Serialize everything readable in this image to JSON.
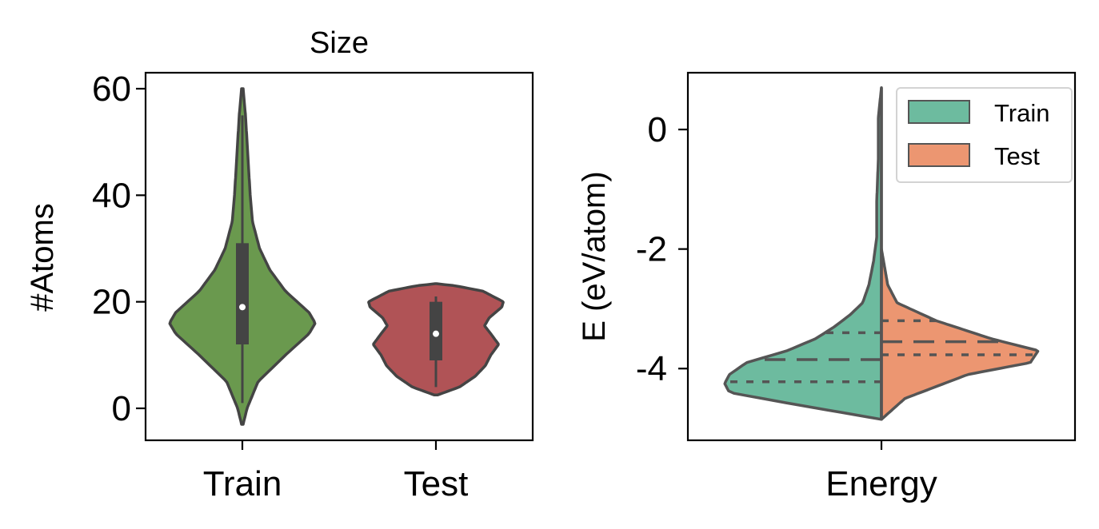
{
  "chart_data": [
    {
      "type": "violin",
      "title": "Size",
      "xlabel": "",
      "ylabel": "#Atoms",
      "ylim": [
        -6,
        63
      ],
      "yticks": [
        0,
        20,
        40,
        60
      ],
      "categories": [
        "Train",
        "Test"
      ],
      "series": [
        {
          "category": "Train",
          "color": "#6a994e",
          "median": 19,
          "q1": 12,
          "q3": 31,
          "whisker_low": 1,
          "whisker_high": 55,
          "density": [
            [
              -3,
              0.01
            ],
            [
              0,
              0.06
            ],
            [
              5,
              0.2
            ],
            [
              10,
              0.55
            ],
            [
              14,
              0.85
            ],
            [
              16,
              0.93
            ],
            [
              18,
              0.85
            ],
            [
              22,
              0.55
            ],
            [
              26,
              0.35
            ],
            [
              30,
              0.22
            ],
            [
              35,
              0.13
            ],
            [
              40,
              0.1
            ],
            [
              45,
              0.08
            ],
            [
              50,
              0.06
            ],
            [
              55,
              0.04
            ],
            [
              60,
              0.01
            ]
          ]
        },
        {
          "category": "Test",
          "color": "#b05356",
          "median": 14,
          "q1": 9,
          "q3": 20,
          "whisker_low": 4,
          "whisker_high": 21,
          "density": [
            [
              2.5,
              0.02
            ],
            [
              4,
              0.3
            ],
            [
              6,
              0.5
            ],
            [
              8,
              0.63
            ],
            [
              10,
              0.7
            ],
            [
              12,
              0.8
            ],
            [
              14,
              0.7
            ],
            [
              15.5,
              0.62
            ],
            [
              17,
              0.68
            ],
            [
              19,
              0.84
            ],
            [
              20,
              0.86
            ],
            [
              22,
              0.6
            ],
            [
              23,
              0.25
            ],
            [
              23.4,
              0.01
            ]
          ]
        }
      ]
    },
    {
      "type": "split-violin",
      "title": "",
      "xlabel": "",
      "ylabel": "E (eV/atom)",
      "ylim": [
        -5.2,
        0.95
      ],
      "yticks": [
        0,
        -2,
        -4
      ],
      "ytick_labels": [
        "0",
        "-2",
        "-4"
      ],
      "categories": [
        "Energy"
      ],
      "legend": {
        "position": "top-right",
        "entries": [
          "Train",
          "Test"
        ]
      },
      "series": [
        {
          "name": "Train",
          "side": "left",
          "color": "#6dbb9f",
          "quartiles": [
            -4.22,
            -3.85,
            -3.4
          ],
          "density": [
            [
              -4.85,
              0.0
            ],
            [
              -4.6,
              0.55
            ],
            [
              -4.4,
              0.97
            ],
            [
              -4.25,
              1.0
            ],
            [
              -4.1,
              0.97
            ],
            [
              -3.9,
              0.86
            ],
            [
              -3.7,
              0.6
            ],
            [
              -3.5,
              0.42
            ],
            [
              -3.3,
              0.3
            ],
            [
              -3.1,
              0.2
            ],
            [
              -2.9,
              0.12
            ],
            [
              -2.6,
              0.08
            ],
            [
              -2.2,
              0.05
            ],
            [
              -1.8,
              0.03
            ],
            [
              -1.2,
              0.03
            ],
            [
              -0.5,
              0.02
            ],
            [
              0.2,
              0.02
            ],
            [
              0.7,
              0.0
            ]
          ]
        },
        {
          "name": "Test",
          "side": "right",
          "color": "#ec9671",
          "quartiles": [
            -3.77,
            -3.55,
            -3.2
          ],
          "density": [
            [
              -4.85,
              0.0
            ],
            [
              -4.5,
              0.15
            ],
            [
              -4.3,
              0.35
            ],
            [
              -4.1,
              0.55
            ],
            [
              -3.9,
              0.95
            ],
            [
              -3.7,
              1.0
            ],
            [
              -3.5,
              0.7
            ],
            [
              -3.2,
              0.35
            ],
            [
              -2.9,
              0.1
            ],
            [
              -2.6,
              0.04
            ],
            [
              -2.0,
              0.0
            ]
          ]
        }
      ]
    }
  ]
}
